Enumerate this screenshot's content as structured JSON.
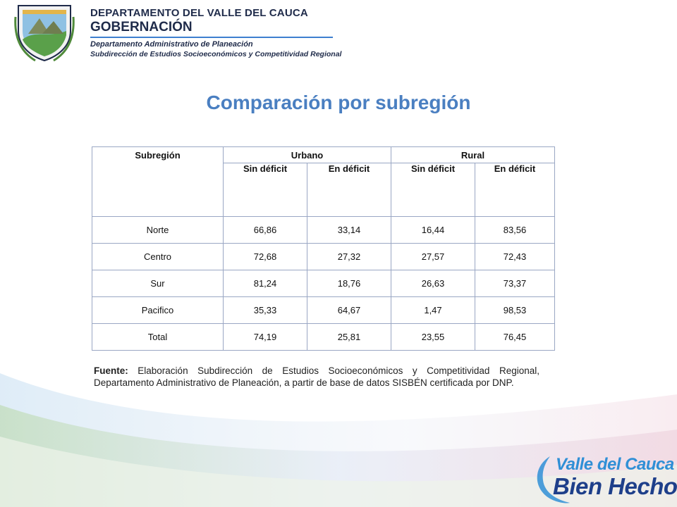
{
  "header": {
    "line1": "DEPARTAMENTO DEL VALLE DEL CAUCA",
    "line2": "GOBERNACIÓN",
    "line3": "Departamento  Administrativo de Planeación",
    "line4": "Subdirección de Estudios Socioeconómicos y Competitividad Regional"
  },
  "title": "Comparación por subregión",
  "table": {
    "col_subregion": "Subregión",
    "group_urbano": "Urbano",
    "group_rural": "Rural",
    "sub_headers": [
      "Sin déficit",
      "En déficit",
      "Sin déficit",
      "En déficit"
    ],
    "rows": [
      [
        "Norte",
        "66,86",
        "33,14",
        "16,44",
        "83,56"
      ],
      [
        "Centro",
        "72,68",
        "27,32",
        "27,57",
        "72,43"
      ],
      [
        "Sur",
        "81,24",
        "18,76",
        "26,63",
        "73,37"
      ],
      [
        "Pacifico",
        "35,33",
        "64,67",
        "1,47",
        "98,53"
      ],
      [
        "Total",
        "74,19",
        "25,81",
        "23,55",
        "76,45"
      ]
    ]
  },
  "source": {
    "label": "Fuente:",
    "text": " Elaboración Subdirección de Estudios Socioeconómicos y Competitividad Regional, Departamento Administrativo de Planeación,  a partir de base de datos SISBÉN certificada por DNP."
  },
  "logo": {
    "line1": "Valle del Cauca",
    "line2": "Bien Hecho!"
  },
  "colors": {
    "title": "#4a7fc1",
    "header_text": "#1f2b4a",
    "header_rule": "#3d7fcf",
    "logo_light": "#2f8fd6",
    "logo_dark": "#1e3f8a"
  }
}
